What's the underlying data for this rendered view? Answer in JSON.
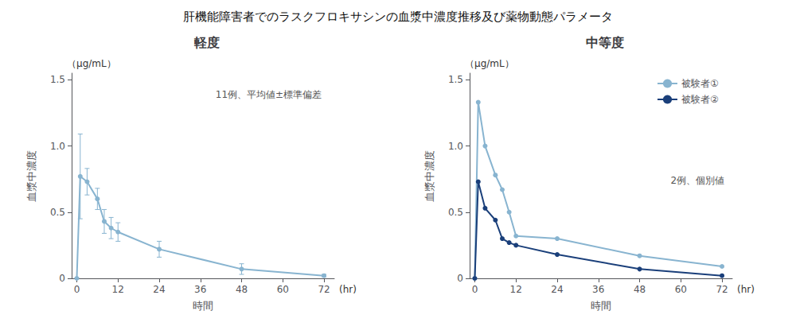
{
  "title": "肝機能障害者でのラスクフロキサシンの血漿中濃度推移及び薬物動態パラメータ",
  "chart_data": [
    {
      "type": "line",
      "title": "軽度",
      "xlabel": "時間",
      "xlabel_units": "(hr)",
      "ylabel": "血漿中濃度",
      "ylabel_units": "（μg/mL）",
      "annotations": [
        "11例、平均値±標準偏差"
      ],
      "x": [
        0,
        1,
        3,
        6,
        8,
        10,
        12,
        24,
        48,
        72
      ],
      "series": [
        {
          "color": "#88b4d0",
          "marker": "circle",
          "values": [
            0.0,
            0.77,
            0.73,
            0.6,
            0.43,
            0.38,
            0.35,
            0.22,
            0.07,
            0.02
          ],
          "yerr": [
            0.0,
            0.32,
            0.1,
            0.08,
            0.09,
            0.08,
            0.07,
            0.06,
            0.04,
            0.01
          ]
        }
      ],
      "xlim": [
        -1.5,
        75
      ],
      "xticks": [
        0,
        12,
        24,
        36,
        48,
        60,
        72
      ],
      "ylim": [
        0,
        1.55
      ],
      "yticks": [
        0,
        0.5,
        {
          "value": 1.0,
          "label": "1.0"
        },
        1.5
      ],
      "grid": false
    },
    {
      "type": "line",
      "title": "中等度",
      "xlabel": "時間",
      "xlabel_units": "(hr)",
      "ylabel": "血漿中濃度",
      "ylabel_units": "（μg/mL）",
      "annotations": [
        "2例、個別値"
      ],
      "x": [
        0,
        1,
        3,
        6,
        8,
        10,
        12,
        24,
        48,
        72
      ],
      "series": [
        {
          "name": "被験者①",
          "color": "#88b4d0",
          "marker": "circle",
          "values": [
            0.0,
            1.33,
            1.0,
            0.78,
            0.67,
            0.5,
            0.32,
            0.3,
            0.17,
            0.09
          ]
        },
        {
          "name": "被験者②",
          "color": "#1a3f7a",
          "marker": "circle",
          "values": [
            0.0,
            0.73,
            0.53,
            0.44,
            0.3,
            0.27,
            0.25,
            0.18,
            0.07,
            0.02
          ]
        }
      ],
      "xlim": [
        -1.5,
        75
      ],
      "xticks": [
        0,
        12,
        24,
        36,
        48,
        60,
        72
      ],
      "ylim": [
        0,
        1.55
      ],
      "yticks": [
        0,
        0.5,
        {
          "value": 1.0,
          "label": "1.0"
        },
        1.5
      ],
      "grid": false,
      "legend": "upper right"
    }
  ]
}
